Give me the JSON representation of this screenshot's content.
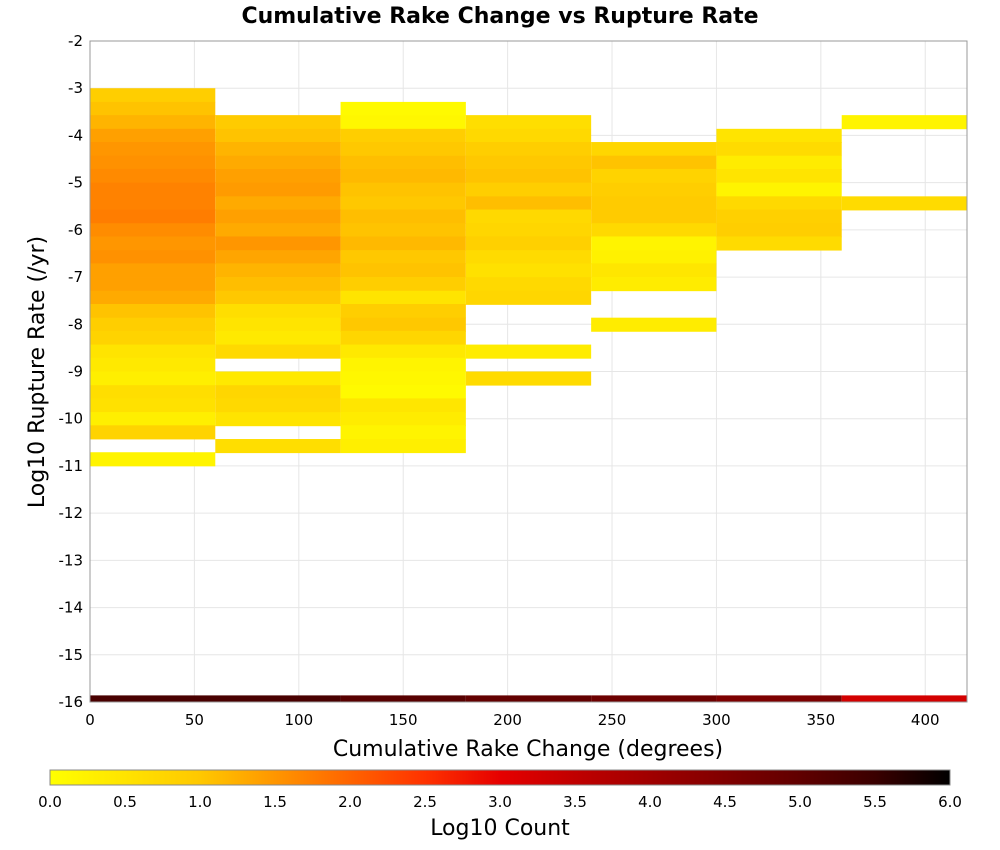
{
  "chart_data": {
    "type": "heatmap",
    "title": "Cumulative Rake Change vs Rupture Rate",
    "xlabel": "Cumulative Rake Change (degrees)",
    "ylabel": "Log10 Rupture Rate (/yr)",
    "xlim": [
      0,
      420
    ],
    "ylim": [
      -16,
      -2
    ],
    "x_ticks": [
      "0",
      "50",
      "100",
      "150",
      "200",
      "250",
      "300",
      "350",
      "400"
    ],
    "y_ticks": [
      "-2",
      "-3",
      "-4",
      "-5",
      "-6",
      "-7",
      "-8",
      "-9",
      "-10",
      "-11",
      "-12",
      "-13",
      "-14",
      "-15",
      "-16"
    ],
    "grid": true,
    "x_bin_width": 60,
    "y_bin_height": 0.2857,
    "colorbar": {
      "label": "Log10 Count",
      "range": [
        0,
        6
      ],
      "ticks": [
        "0.0",
        "0.5",
        "1.0",
        "1.5",
        "2.0",
        "2.5",
        "3.0",
        "3.5",
        "4.0",
        "4.5",
        "5.0",
        "5.5",
        "6.0"
      ],
      "stops": [
        [
          0,
          "#ffff00"
        ],
        [
          1.0,
          "#ffc800"
        ],
        [
          1.5,
          "#ff9600"
        ],
        [
          2.0,
          "#ff6400"
        ],
        [
          2.5,
          "#ff3200"
        ],
        [
          3.0,
          "#e60000"
        ],
        [
          3.5,
          "#c00000"
        ],
        [
          4.0,
          "#a00000"
        ],
        [
          4.5,
          "#800000"
        ],
        [
          5.0,
          "#600000"
        ],
        [
          5.5,
          "#3a0000"
        ],
        [
          6.0,
          "#000000"
        ]
      ]
    },
    "columns": [
      {
        "x0": 0,
        "cells": [
          [
            -3.0,
            0.9
          ],
          [
            -3.29,
            1.05
          ],
          [
            -3.57,
            1.2
          ],
          [
            -3.86,
            1.4
          ],
          [
            -4.14,
            1.5
          ],
          [
            -4.43,
            1.55
          ],
          [
            -4.71,
            1.62
          ],
          [
            -5.0,
            1.7
          ],
          [
            -5.29,
            1.7
          ],
          [
            -5.57,
            1.75
          ],
          [
            -5.86,
            1.6
          ],
          [
            -6.14,
            1.5
          ],
          [
            -6.43,
            1.55
          ],
          [
            -6.71,
            1.4
          ],
          [
            -7.0,
            1.4
          ],
          [
            -7.29,
            1.3
          ],
          [
            -7.57,
            1.05
          ],
          [
            -7.86,
            0.9
          ],
          [
            -8.14,
            0.8
          ],
          [
            -8.43,
            0.5
          ],
          [
            -8.71,
            0.4
          ],
          [
            -9.0,
            0.3
          ],
          [
            -9.29,
            0.6
          ],
          [
            -9.57,
            0.55
          ],
          [
            -9.86,
            0.3
          ],
          [
            -10.14,
            0.8
          ],
          [
            -10.71,
            0.2
          ]
        ]
      },
      {
        "x0": 60,
        "cells": [
          [
            -3.57,
            0.95
          ],
          [
            -3.86,
            1.05
          ],
          [
            -4.14,
            1.2
          ],
          [
            -4.43,
            1.3
          ],
          [
            -4.71,
            1.4
          ],
          [
            -5.0,
            1.45
          ],
          [
            -5.29,
            1.3
          ],
          [
            -5.57,
            1.4
          ],
          [
            -5.86,
            1.3
          ],
          [
            -6.14,
            1.5
          ],
          [
            -6.43,
            1.35
          ],
          [
            -6.71,
            1.2
          ],
          [
            -7.0,
            1.1
          ],
          [
            -7.29,
            1.0
          ],
          [
            -7.57,
            0.6
          ],
          [
            -7.86,
            0.5
          ],
          [
            -8.14,
            0.4
          ],
          [
            -8.43,
            0.7
          ],
          [
            -9.0,
            0.4
          ],
          [
            -9.29,
            0.75
          ],
          [
            -9.57,
            0.7
          ],
          [
            -9.86,
            0.5
          ],
          [
            -10.43,
            0.6
          ]
        ]
      },
      {
        "x0": 120,
        "cells": [
          [
            -3.29,
            0.1
          ],
          [
            -3.57,
            0.15
          ],
          [
            -3.86,
            0.9
          ],
          [
            -4.14,
            1.0
          ],
          [
            -4.43,
            1.1
          ],
          [
            -4.71,
            1.15
          ],
          [
            -5.0,
            1.05
          ],
          [
            -5.29,
            1.0
          ],
          [
            -5.57,
            1.1
          ],
          [
            -5.86,
            1.05
          ],
          [
            -6.14,
            1.15
          ],
          [
            -6.43,
            1.0
          ],
          [
            -6.71,
            1.05
          ],
          [
            -7.0,
            0.9
          ],
          [
            -7.29,
            0.5
          ],
          [
            -7.57,
            0.9
          ],
          [
            -7.86,
            1.0
          ],
          [
            -8.14,
            0.75
          ],
          [
            -8.43,
            0.4
          ],
          [
            -8.71,
            0.2
          ],
          [
            -9.0,
            0.15
          ],
          [
            -9.29,
            0.1
          ],
          [
            -9.57,
            0.45
          ],
          [
            -9.86,
            0.35
          ],
          [
            -10.14,
            0.2
          ],
          [
            -10.43,
            0.3
          ]
        ]
      },
      {
        "x0": 180,
        "cells": [
          [
            -3.57,
            0.6
          ],
          [
            -3.86,
            0.7
          ],
          [
            -4.14,
            0.9
          ],
          [
            -4.43,
            1.0
          ],
          [
            -4.71,
            1.05
          ],
          [
            -5.0,
            0.9
          ],
          [
            -5.29,
            1.1
          ],
          [
            -5.57,
            0.7
          ],
          [
            -5.86,
            0.75
          ],
          [
            -6.14,
            0.85
          ],
          [
            -6.43,
            0.65
          ],
          [
            -6.71,
            0.55
          ],
          [
            -7.0,
            0.7
          ],
          [
            -7.29,
            0.75
          ],
          [
            -8.43,
            0.35
          ],
          [
            -9.0,
            0.65
          ]
        ]
      },
      {
        "x0": 240,
        "cells": [
          [
            -4.14,
            0.75
          ],
          [
            -4.43,
            1.05
          ],
          [
            -4.71,
            0.8
          ],
          [
            -5.0,
            0.9
          ],
          [
            -5.29,
            0.95
          ],
          [
            -5.57,
            0.95
          ],
          [
            -5.86,
            0.7
          ],
          [
            -6.14,
            0.2
          ],
          [
            -6.43,
            0.25
          ],
          [
            -6.71,
            0.45
          ],
          [
            -7.0,
            0.35
          ],
          [
            -7.86,
            0.35
          ]
        ]
      },
      {
        "x0": 300,
        "cells": [
          [
            -3.86,
            0.5
          ],
          [
            -4.14,
            0.65
          ],
          [
            -4.43,
            0.35
          ],
          [
            -4.71,
            0.5
          ],
          [
            -5.0,
            0.2
          ],
          [
            -5.29,
            0.7
          ],
          [
            -5.57,
            0.85
          ],
          [
            -5.86,
            0.9
          ],
          [
            -6.14,
            0.65
          ]
        ]
      },
      {
        "x0": 360,
        "cells": [
          [
            -3.57,
            0.2
          ],
          [
            -5.29,
            0.65
          ]
        ]
      }
    ],
    "bottom_row": {
      "y_top": -15.86,
      "segments": [
        {
          "x0": 0,
          "x1": 120,
          "value": 5.3
        },
        {
          "x0": 120,
          "x1": 180,
          "value": 5.1
        },
        {
          "x0": 180,
          "x1": 240,
          "value": 4.95
        },
        {
          "x0": 240,
          "x1": 300,
          "value": 4.8
        },
        {
          "x0": 300,
          "x1": 360,
          "value": 4.55
        },
        {
          "x0": 360,
          "x1": 420,
          "value": 3.25
        }
      ]
    }
  }
}
